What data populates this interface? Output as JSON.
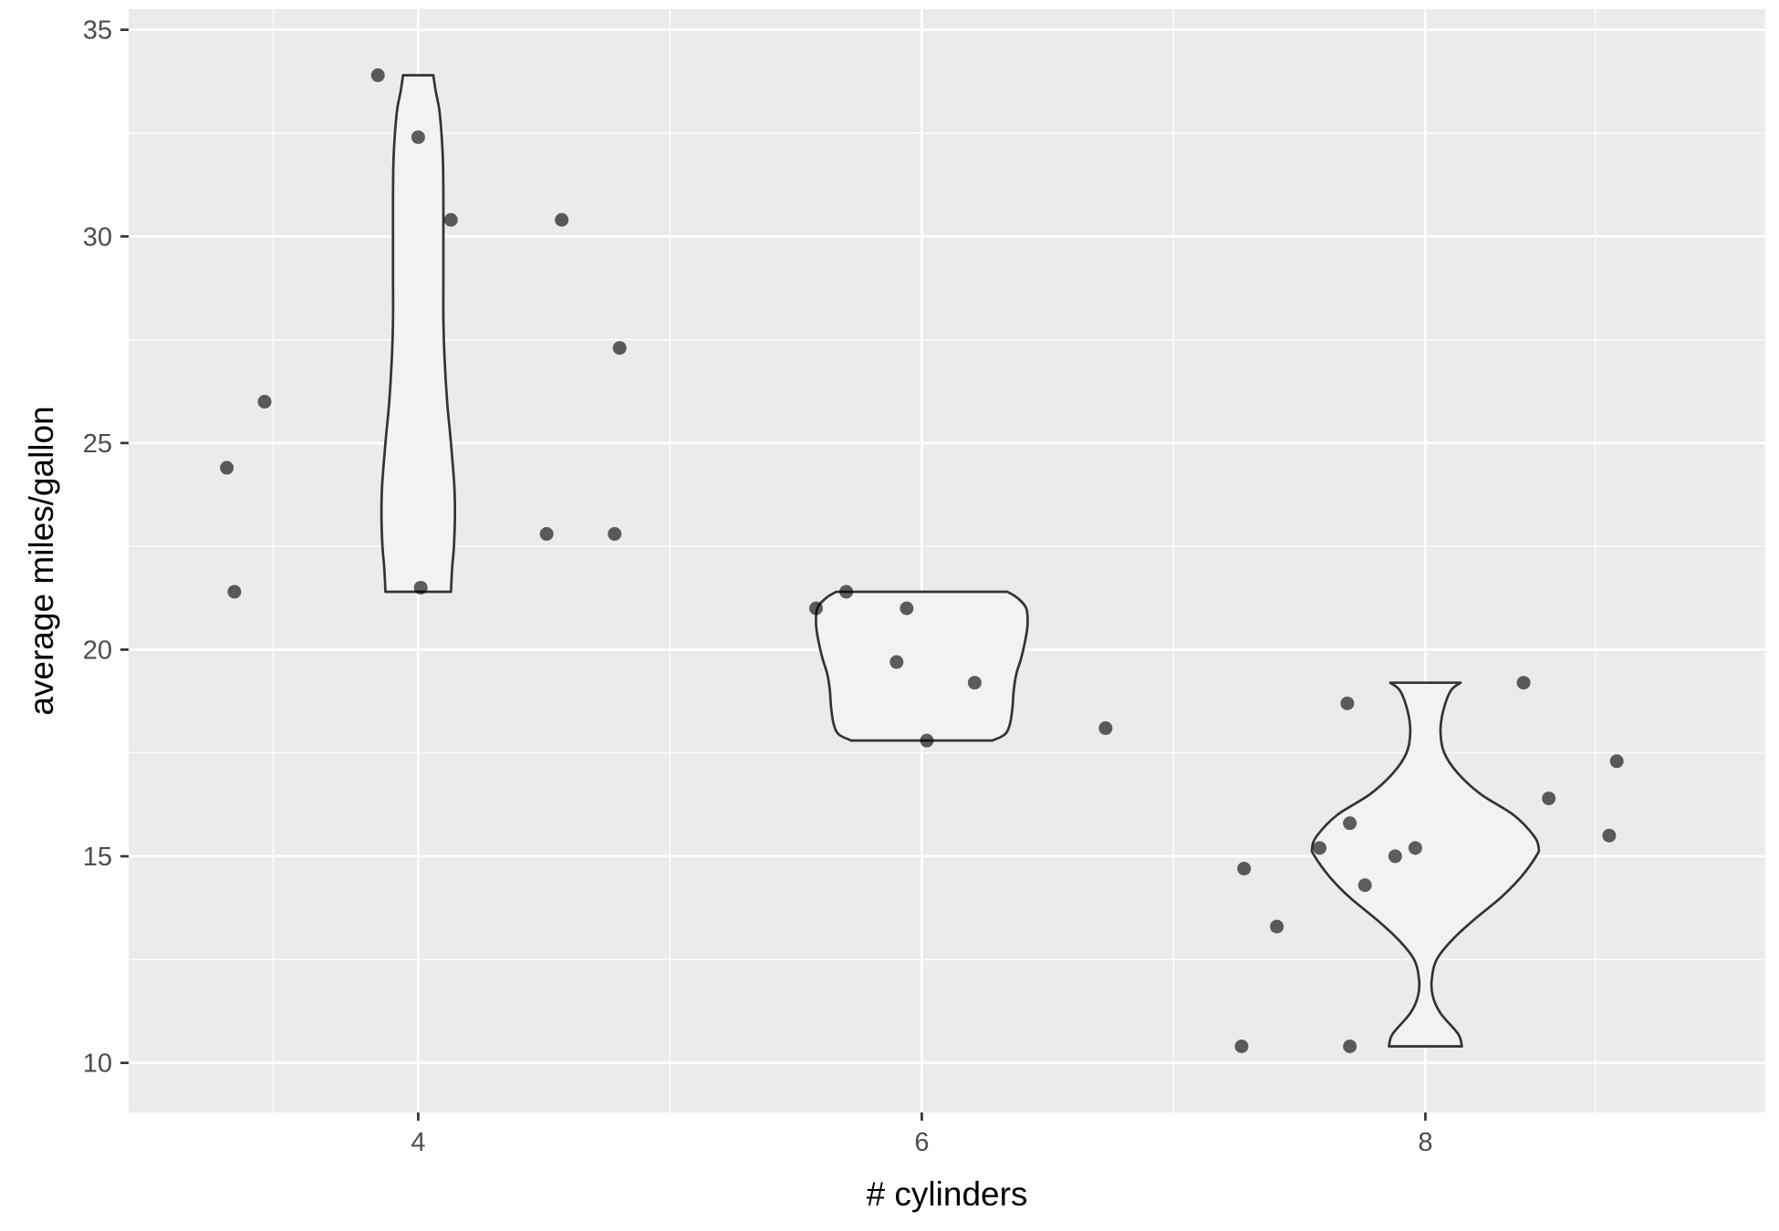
{
  "chart_data": {
    "type": "violin",
    "title": "",
    "xlabel": "# cylinders",
    "ylabel": "average miles/gallon",
    "xlim": [
      2.85,
      9.35
    ],
    "ylim": [
      8.8,
      35.5
    ],
    "x_ticks": [
      4,
      6,
      8
    ],
    "y_ticks": [
      10,
      15,
      20,
      25,
      30,
      35
    ],
    "grid": true,
    "legend": "none",
    "colors": {
      "panel_background": "#ebebeb",
      "grid": "#ffffff",
      "violin_fill": "#f2f2f2",
      "violin_outline": "#333333",
      "point": "#000000",
      "tick_label": "#4d4d4d",
      "axis_title": "#000000"
    },
    "violins": [
      {
        "x": 4,
        "y_range": [
          21.4,
          33.9
        ],
        "profile": [
          {
            "y": 21.4,
            "w": 0.13
          },
          {
            "y": 22.0,
            "w": 0.135
          },
          {
            "y": 22.5,
            "w": 0.142
          },
          {
            "y": 23.3,
            "w": 0.146
          },
          {
            "y": 24.0,
            "w": 0.143
          },
          {
            "y": 25.0,
            "w": 0.13
          },
          {
            "y": 26.0,
            "w": 0.115
          },
          {
            "y": 27.0,
            "w": 0.105
          },
          {
            "y": 28.0,
            "w": 0.1
          },
          {
            "y": 29.0,
            "w": 0.1
          },
          {
            "y": 30.0,
            "w": 0.1
          },
          {
            "y": 31.0,
            "w": 0.1
          },
          {
            "y": 32.0,
            "w": 0.097
          },
          {
            "y": 33.0,
            "w": 0.085
          },
          {
            "y": 33.5,
            "w": 0.07
          },
          {
            "y": 33.9,
            "w": 0.06
          }
        ]
      },
      {
        "x": 6,
        "y_range": [
          17.8,
          21.4
        ],
        "profile": [
          {
            "y": 17.8,
            "w": 0.28
          },
          {
            "y": 17.95,
            "w": 0.33
          },
          {
            "y": 18.2,
            "w": 0.35
          },
          {
            "y": 18.6,
            "w": 0.36
          },
          {
            "y": 19.0,
            "w": 0.365
          },
          {
            "y": 19.4,
            "w": 0.375
          },
          {
            "y": 19.8,
            "w": 0.395
          },
          {
            "y": 20.2,
            "w": 0.41
          },
          {
            "y": 20.6,
            "w": 0.42
          },
          {
            "y": 21.0,
            "w": 0.415
          },
          {
            "y": 21.25,
            "w": 0.38
          },
          {
            "y": 21.4,
            "w": 0.34
          }
        ]
      },
      {
        "x": 8,
        "y_range": [
          10.4,
          19.2
        ],
        "profile": [
          {
            "y": 10.4,
            "w": 0.145
          },
          {
            "y": 10.7,
            "w": 0.13
          },
          {
            "y": 11.2,
            "w": 0.06
          },
          {
            "y": 11.6,
            "w": 0.03
          },
          {
            "y": 12.0,
            "w": 0.025
          },
          {
            "y": 12.5,
            "w": 0.045
          },
          {
            "y": 13.0,
            "w": 0.11
          },
          {
            "y": 13.5,
            "w": 0.2
          },
          {
            "y": 14.0,
            "w": 0.3
          },
          {
            "y": 14.5,
            "w": 0.38
          },
          {
            "y": 15.0,
            "w": 0.44
          },
          {
            "y": 15.2,
            "w": 0.45
          },
          {
            "y": 15.5,
            "w": 0.43
          },
          {
            "y": 16.0,
            "w": 0.35
          },
          {
            "y": 16.5,
            "w": 0.22
          },
          {
            "y": 17.0,
            "w": 0.13
          },
          {
            "y": 17.5,
            "w": 0.075
          },
          {
            "y": 18.0,
            "w": 0.06
          },
          {
            "y": 18.5,
            "w": 0.07
          },
          {
            "y": 19.0,
            "w": 0.1
          },
          {
            "y": 19.2,
            "w": 0.14
          }
        ]
      }
    ],
    "points": [
      {
        "x": 3.24,
        "y": 24.4
      },
      {
        "x": 3.27,
        "y": 21.4
      },
      {
        "x": 3.39,
        "y": 26.0
      },
      {
        "x": 3.84,
        "y": 33.9
      },
      {
        "x": 4.0,
        "y": 32.4
      },
      {
        "x": 4.13,
        "y": 30.4
      },
      {
        "x": 4.01,
        "y": 21.5
      },
      {
        "x": 4.51,
        "y": 22.8
      },
      {
        "x": 4.57,
        "y": 30.4
      },
      {
        "x": 4.78,
        "y": 22.8
      },
      {
        "x": 4.8,
        "y": 27.3
      },
      {
        "x": 5.58,
        "y": 21.0
      },
      {
        "x": 5.7,
        "y": 21.4
      },
      {
        "x": 5.94,
        "y": 21.0
      },
      {
        "x": 5.9,
        "y": 19.7
      },
      {
        "x": 6.02,
        "y": 17.8
      },
      {
        "x": 6.21,
        "y": 19.2
      },
      {
        "x": 6.73,
        "y": 18.1
      },
      {
        "x": 7.27,
        "y": 10.4
      },
      {
        "x": 7.28,
        "y": 14.7
      },
      {
        "x": 7.41,
        "y": 13.3
      },
      {
        "x": 7.58,
        "y": 15.2
      },
      {
        "x": 7.69,
        "y": 18.7
      },
      {
        "x": 7.7,
        "y": 15.8
      },
      {
        "x": 7.7,
        "y": 10.4
      },
      {
        "x": 7.76,
        "y": 14.3
      },
      {
        "x": 7.88,
        "y": 15.0
      },
      {
        "x": 7.96,
        "y": 15.2
      },
      {
        "x": 8.39,
        "y": 19.2
      },
      {
        "x": 8.49,
        "y": 16.4
      },
      {
        "x": 8.73,
        "y": 15.5
      },
      {
        "x": 8.76,
        "y": 17.3
      }
    ]
  }
}
